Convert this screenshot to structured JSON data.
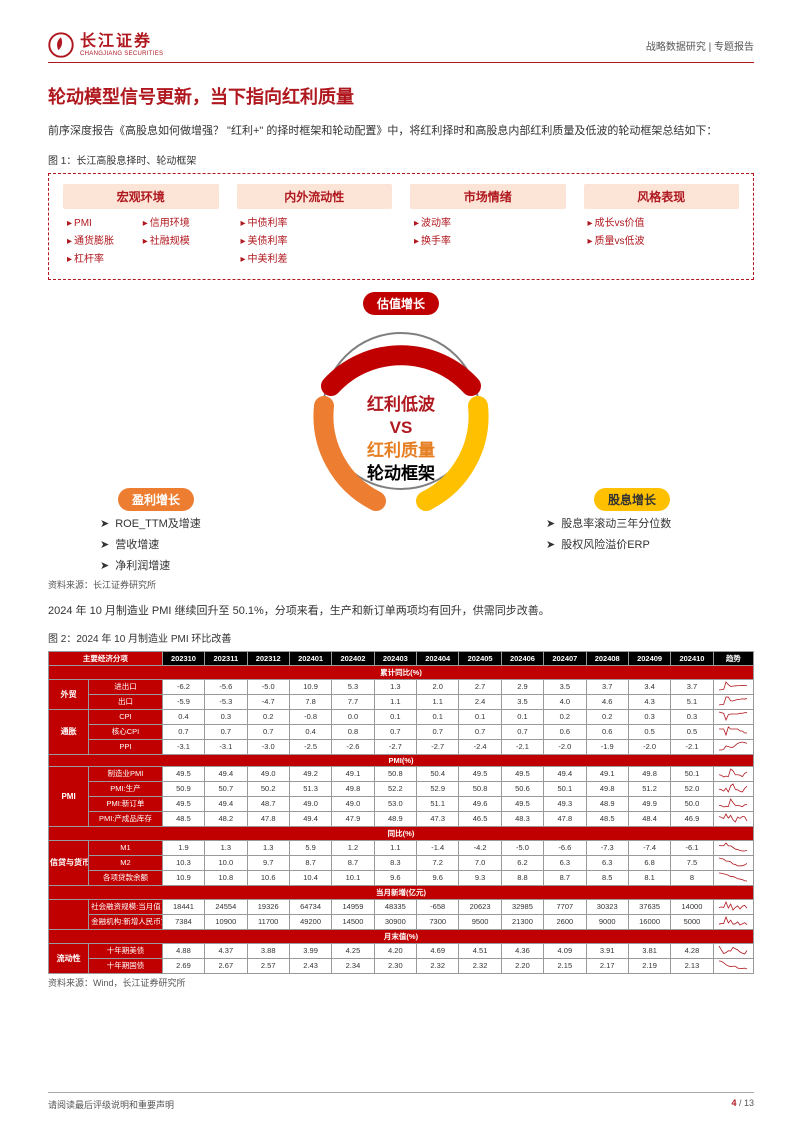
{
  "header": {
    "logo_cn": "长江证券",
    "logo_en": "CHANGJIANG SECURITIES",
    "right": "战略数据研究 | 专题报告"
  },
  "title": "轮动模型信号更新，当下指向红利质量",
  "intro": "前序深度报告《高股息如何做增强？  \"红利+\" 的择时框架和轮动配置》中，将红利择时和高股息内部红利质量及低波的轮动框架总结如下：",
  "fig1_caption": "图 1：长江高股息择时、轮动框架",
  "framework": {
    "cols": [
      {
        "head": "宏观环境",
        "items": [
          "PMI",
          "信用环境",
          "通货膨胀",
          "社融规模",
          "杠杆率",
          ""
        ]
      },
      {
        "head": "内外流动性",
        "items": [
          "中债利率",
          "美债利率",
          "中美利差"
        ]
      },
      {
        "head": "市场情绪",
        "items": [
          "波动率",
          "换手率"
        ]
      },
      {
        "head": "风格表现",
        "items": [
          "成长vs价值",
          "质量vs低波"
        ]
      }
    ]
  },
  "circle": {
    "segments": {
      "top_color": "#c00000",
      "left_color": "#ed7d31",
      "right_color": "#ffc000",
      "inner_border": "#7f7f7f"
    },
    "pill_top": "估值增长",
    "pill_left": "盈利增长",
    "pill_right": "股息增长",
    "center": {
      "line1": "红利低波",
      "vs": "VS",
      "line2": "红利质量",
      "line3": "轮动框架"
    },
    "left_list": [
      "ROE_TTM及增速",
      "营收增速",
      "净利润增速"
    ],
    "right_list": [
      "股息率滚动三年分位数",
      "股权风险溢价ERP"
    ]
  },
  "source1": "资料来源：长江证券研究所",
  "body2": "2024 年 10 月制造业 PMI 继续回升至 50.1%，分项来看，生产和新订单两项均有回升，供需同步改善。",
  "fig2_caption": "图 2：2024 年 10 月制造业 PMI 环比改善",
  "table": {
    "periods": [
      "202310",
      "202311",
      "202312",
      "202401",
      "202402",
      "202403",
      "202404",
      "202405",
      "202406",
      "202407",
      "202408",
      "202409",
      "202410"
    ],
    "trend_head": "趋势",
    "topheader": "主要经济分项",
    "sections": [
      {
        "name": "累计同比(%)",
        "groups": [
          {
            "group": "外贸",
            "rows": [
              {
                "name": "进出口",
                "vals": [
                  "-6.2",
                  "-5.6",
                  "-5.0",
                  "10.9",
                  "5.3",
                  "1.3",
                  "2.0",
                  "2.7",
                  "2.9",
                  "3.5",
                  "3.7",
                  "3.4",
                  "3.7"
                ]
              },
              {
                "name": "出口",
                "vals": [
                  "-5.9",
                  "-5.3",
                  "-4.7",
                  "7.8",
                  "7.7",
                  "1.1",
                  "1.1",
                  "2.4",
                  "3.5",
                  "4.0",
                  "4.6",
                  "4.3",
                  "5.1"
                ]
              }
            ]
          },
          {
            "group": "通胀",
            "rows": [
              {
                "name": "CPI",
                "vals": [
                  "0.4",
                  "0.3",
                  "0.2",
                  "-0.8",
                  "0.0",
                  "0.1",
                  "0.1",
                  "0.1",
                  "0.1",
                  "0.2",
                  "0.2",
                  "0.3",
                  "0.3"
                ]
              },
              {
                "name": "核心CPI",
                "vals": [
                  "0.7",
                  "0.7",
                  "0.7",
                  "0.4",
                  "0.8",
                  "0.7",
                  "0.7",
                  "0.7",
                  "0.7",
                  "0.6",
                  "0.6",
                  "0.5",
                  "0.5"
                ]
              },
              {
                "name": "PPI",
                "vals": [
                  "-3.1",
                  "-3.1",
                  "-3.0",
                  "-2.5",
                  "-2.6",
                  "-2.7",
                  "-2.7",
                  "-2.4",
                  "-2.1",
                  "-2.0",
                  "-1.9",
                  "-2.0",
                  "-2.1"
                ]
              }
            ]
          }
        ]
      },
      {
        "name": "PMI(%)",
        "groups": [
          {
            "group": "PMI",
            "rows": [
              {
                "name": "制造业PMI",
                "vals": [
                  "49.5",
                  "49.4",
                  "49.0",
                  "49.2",
                  "49.1",
                  "50.8",
                  "50.4",
                  "49.5",
                  "49.5",
                  "49.4",
                  "49.1",
                  "49.8",
                  "50.1"
                ]
              },
              {
                "name": "PMI:生产",
                "vals": [
                  "50.9",
                  "50.7",
                  "50.2",
                  "51.3",
                  "49.8",
                  "52.2",
                  "52.9",
                  "50.8",
                  "50.6",
                  "50.1",
                  "49.8",
                  "51.2",
                  "52.0"
                ]
              },
              {
                "name": "PMI:新订单",
                "vals": [
                  "49.5",
                  "49.4",
                  "48.7",
                  "49.0",
                  "49.0",
                  "53.0",
                  "51.1",
                  "49.6",
                  "49.5",
                  "49.3",
                  "48.9",
                  "49.9",
                  "50.0"
                ]
              },
              {
                "name": "PMI:产成品库存",
                "vals": [
                  "48.5",
                  "48.2",
                  "47.8",
                  "49.4",
                  "47.9",
                  "48.9",
                  "47.3",
                  "46.5",
                  "48.3",
                  "47.8",
                  "48.5",
                  "48.4",
                  "46.9"
                ]
              }
            ]
          }
        ]
      },
      {
        "name": "同比(%)",
        "groups": [
          {
            "group": "信贷与货币",
            "rows": [
              {
                "name": "M1",
                "vals": [
                  "1.9",
                  "1.3",
                  "1.3",
                  "5.9",
                  "1.2",
                  "1.1",
                  "-1.4",
                  "-4.2",
                  "-5.0",
                  "-6.6",
                  "-7.3",
                  "-7.4",
                  "-6.1"
                ]
              },
              {
                "name": "M2",
                "vals": [
                  "10.3",
                  "10.0",
                  "9.7",
                  "8.7",
                  "8.7",
                  "8.3",
                  "7.2",
                  "7.0",
                  "6.2",
                  "6.3",
                  "6.3",
                  "6.8",
                  "7.5"
                ]
              },
              {
                "name": "各项贷款余额",
                "vals": [
                  "10.9",
                  "10.8",
                  "10.6",
                  "10.4",
                  "10.1",
                  "9.6",
                  "9.6",
                  "9.3",
                  "8.8",
                  "8.7",
                  "8.5",
                  "8.1",
                  "8"
                ]
              }
            ]
          }
        ]
      },
      {
        "name": "当月新增(亿元)",
        "groups": [
          {
            "group": "",
            "rows": [
              {
                "name": "社会融资规模:当月值",
                "vals": [
                  "18441",
                  "24554",
                  "19326",
                  "64734",
                  "14959",
                  "48335",
                  "-658",
                  "20623",
                  "32985",
                  "7707",
                  "30323",
                  "37635",
                  "14000"
                ]
              },
              {
                "name": "金融机构:新增人民币贷款",
                "vals": [
                  "7384",
                  "10900",
                  "11700",
                  "49200",
                  "14500",
                  "30900",
                  "7300",
                  "9500",
                  "21300",
                  "2600",
                  "9000",
                  "16000",
                  "5000"
                ]
              }
            ]
          }
        ]
      },
      {
        "name": "月末值(%)",
        "groups": [
          {
            "group": "流动性",
            "rows": [
              {
                "name": "十年期美债",
                "vals": [
                  "4.88",
                  "4.37",
                  "3.88",
                  "3.99",
                  "4.25",
                  "4.20",
                  "4.69",
                  "4.51",
                  "4.36",
                  "4.09",
                  "3.91",
                  "3.81",
                  "4.28"
                ]
              },
              {
                "name": "十年期国债",
                "vals": [
                  "2.69",
                  "2.67",
                  "2.57",
                  "2.43",
                  "2.34",
                  "2.30",
                  "2.32",
                  "2.32",
                  "2.20",
                  "2.15",
                  "2.17",
                  "2.19",
                  "2.13"
                ]
              }
            ]
          }
        ]
      }
    ]
  },
  "source2": "资料来源：Wind，长江证券研究所",
  "footer": {
    "left": "请阅读最后评级说明和重要声明",
    "page_cur": "4",
    "page_total": "13"
  }
}
